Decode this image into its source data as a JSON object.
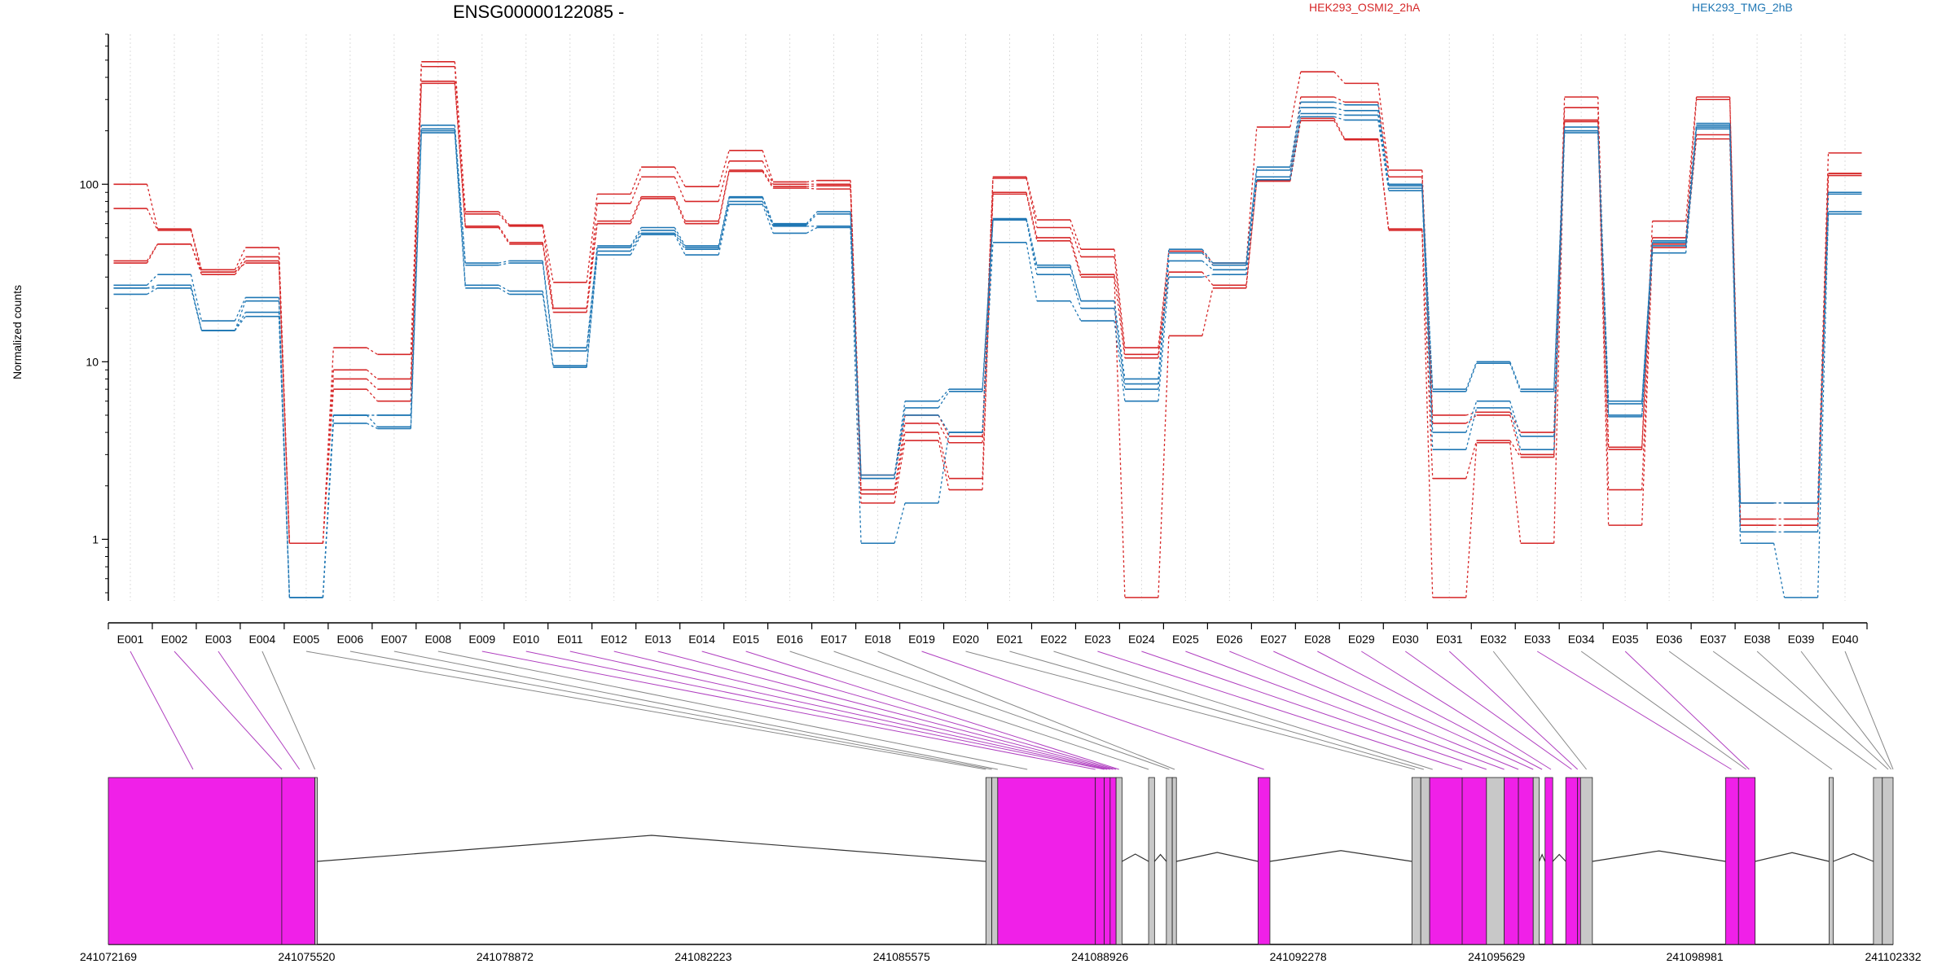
{
  "chart_data": {
    "type": "line",
    "title": "ENSG00000122085 -",
    "ylabel": "Normalized counts",
    "xlabel": "",
    "y_scale": "log",
    "ylim": [
      0.45,
      700
    ],
    "y_ticks": [
      "1",
      "10",
      "100"
    ],
    "y_tick_values": [
      1,
      10,
      100
    ],
    "grid": "vertical-dotted",
    "legend_placement": "top",
    "legend": [
      {
        "label": "HEK293_OSMI2_2hA",
        "color": "#d62728"
      },
      {
        "label": "HEK293_TMG_2hB",
        "color": "#1f77b4"
      }
    ],
    "categories": [
      "E001",
      "E002",
      "E003",
      "E004",
      "E005",
      "E006",
      "E007",
      "E008",
      "E009",
      "E010",
      "E011",
      "E012",
      "E013",
      "E014",
      "E015",
      "E016",
      "E017",
      "E018",
      "E019",
      "E020",
      "E021",
      "E022",
      "E023",
      "E024",
      "E025",
      "E026",
      "E027",
      "E028",
      "E029",
      "E030",
      "E031",
      "E032",
      "E033",
      "E034",
      "E035",
      "E036",
      "E037",
      "E038",
      "E039",
      "E040"
    ],
    "series": [
      {
        "group": "OSMI2",
        "color": "#d62728",
        "values": [
          100,
          56,
          33,
          44,
          0.95,
          12,
          11,
          490,
          70,
          59,
          28,
          88,
          125,
          97,
          155,
          103,
          105,
          2.3,
          5,
          3.8,
          110,
          63,
          43,
          12,
          42,
          36,
          210,
          430,
          370,
          120,
          5,
          5.2,
          4,
          310,
          3.3,
          62,
          310,
          1.6,
          1.6,
          150
        ]
      },
      {
        "group": "OSMI2",
        "color": "#d62728",
        "values": [
          73,
          55,
          32,
          39,
          0.95,
          9,
          8,
          460,
          68,
          58,
          20,
          78,
          110,
          80,
          135,
          100,
          100,
          1.9,
          4.5,
          3.5,
          108,
          57,
          39,
          11,
          41,
          35,
          110,
          310,
          290,
          110,
          4.5,
          5,
          3,
          270,
          3.2,
          50,
          300,
          1.3,
          1.3,
          115
        ]
      },
      {
        "group": "OSMI2",
        "color": "#d62728",
        "values": [
          37,
          46,
          31,
          37,
          0.95,
          8,
          7,
          380,
          58,
          47,
          20,
          62,
          85,
          62,
          120,
          97,
          98,
          1.8,
          4,
          2.2,
          90,
          50,
          31,
          10.5,
          32,
          27,
          105,
          235,
          180,
          56,
          2.2,
          3.6,
          2.9,
          230,
          1.9,
          46,
          190,
          1.2,
          1.2,
          115
        ]
      },
      {
        "group": "OSMI2",
        "color": "#d62728",
        "values": [
          36,
          46,
          32,
          36,
          0.95,
          7,
          6,
          370,
          57,
          46,
          19,
          60,
          83,
          60,
          118,
          95,
          94,
          1.6,
          3.6,
          1.9,
          88,
          48,
          30,
          0.47,
          14,
          26,
          104,
          228,
          178,
          55,
          0.47,
          3.5,
          0.95,
          225,
          1.2,
          44,
          180,
          1.2,
          1.2,
          112
        ]
      },
      {
        "group": "TMG",
        "color": "#1f77b4",
        "values": [
          27,
          31,
          17,
          23,
          0.47,
          5,
          5,
          215,
          36,
          37,
          12,
          45,
          57,
          45,
          85,
          60,
          70,
          2.3,
          6,
          7,
          64,
          35,
          22,
          8,
          43,
          36,
          125,
          290,
          280,
          100,
          7,
          10,
          7,
          210,
          6,
          48,
          220,
          1.6,
          1.6,
          90
        ]
      },
      {
        "group": "TMG",
        "color": "#1f77b4",
        "values": [
          26,
          27,
          15,
          22,
          0.47,
          5,
          5,
          205,
          35,
          36,
          11.5,
          44,
          55,
          44,
          84,
          59,
          68,
          2.2,
          5.5,
          6.8,
          63,
          34,
          22,
          7.5,
          41,
          35,
          120,
          270,
          260,
          98,
          6.8,
          9.8,
          6.8,
          200,
          5.8,
          47,
          215,
          1.6,
          1.6,
          88
        ]
      },
      {
        "group": "TMG",
        "color": "#1f77b4",
        "values": [
          26,
          26,
          15,
          19,
          0.47,
          5,
          4.3,
          200,
          27,
          25,
          9.5,
          42,
          53,
          43,
          80,
          58,
          58,
          2.2,
          5,
          4,
          63,
          31,
          20,
          7,
          37,
          33,
          110,
          250,
          245,
          95,
          4,
          6,
          3.8,
          200,
          5,
          45,
          210,
          1.1,
          1.1,
          70
        ]
      },
      {
        "group": "TMG",
        "color": "#1f77b4",
        "values": [
          24,
          26,
          15,
          18,
          0.47,
          4.5,
          4.2,
          195,
          26,
          24,
          9.3,
          40,
          52,
          40,
          77,
          53,
          57,
          0.95,
          1.6,
          4,
          47,
          22,
          17,
          6,
          30,
          31,
          106,
          240,
          230,
          92,
          3.2,
          5.5,
          3.2,
          195,
          4.9,
          41,
          205,
          0.95,
          0.47,
          68
        ]
      }
    ],
    "gene_model": {
      "coordinate_ticks": [
        "241072169",
        "241075520",
        "241078872",
        "241082223",
        "241085575",
        "241088926",
        "241092278",
        "241095629",
        "241098981",
        "241102332"
      ],
      "coordinate_range": [
        241072169,
        241102332
      ],
      "exon_bins": [
        {
          "start": 241072169,
          "end": 241075100,
          "color": "#f020e8"
        },
        {
          "start": 241075100,
          "end": 241075660,
          "color": "#f020e8"
        },
        {
          "start": 241075660,
          "end": 241075700,
          "color": "#c8c8c8"
        },
        {
          "start": 241087000,
          "end": 241087100,
          "color": "#c8c8c8"
        },
        {
          "start": 241087100,
          "end": 241087200,
          "color": "#c8c8c8"
        },
        {
          "start": 241087200,
          "end": 241088850,
          "color": "#f020e8"
        },
        {
          "start": 241088850,
          "end": 241089000,
          "color": "#f020e8"
        },
        {
          "start": 241089000,
          "end": 241089100,
          "color": "#f020e8"
        },
        {
          "start": 241089100,
          "end": 241089200,
          "color": "#f020e8"
        },
        {
          "start": 241089200,
          "end": 241089300,
          "color": "#c8c8c8"
        },
        {
          "start": 241089750,
          "end": 241089850,
          "color": "#c8c8c8"
        },
        {
          "start": 241090050,
          "end": 241090150,
          "color": "#c8c8c8"
        },
        {
          "start": 241090150,
          "end": 241090220,
          "color": "#c8c8c8"
        },
        {
          "start": 241091600,
          "end": 241091800,
          "color": "#f020e8"
        },
        {
          "start": 241094200,
          "end": 241094350,
          "color": "#c8c8c8"
        },
        {
          "start": 241094350,
          "end": 241094500,
          "color": "#c8c8c8"
        },
        {
          "start": 241094500,
          "end": 241095050,
          "color": "#f020e8"
        },
        {
          "start": 241095050,
          "end": 241095460,
          "color": "#f020e8"
        },
        {
          "start": 241095460,
          "end": 241095760,
          "color": "#c8c8c8"
        },
        {
          "start": 241095760,
          "end": 241096000,
          "color": "#f020e8"
        },
        {
          "start": 241096000,
          "end": 241096250,
          "color": "#f020e8"
        },
        {
          "start": 241096250,
          "end": 241096350,
          "color": "#c8c8c8"
        },
        {
          "start": 241096450,
          "end": 241096580,
          "color": "#f020e8"
        },
        {
          "start": 241096800,
          "end": 241097000,
          "color": "#f020e8"
        },
        {
          "start": 241097000,
          "end": 241097050,
          "color": "#f020e8"
        },
        {
          "start": 241097050,
          "end": 241097250,
          "color": "#c8c8c8"
        },
        {
          "start": 241099500,
          "end": 241099720,
          "color": "#f020e8"
        },
        {
          "start": 241099720,
          "end": 241100000,
          "color": "#f020e8"
        },
        {
          "start": 241101250,
          "end": 241101320,
          "color": "#c8c8c8"
        },
        {
          "start": 241102000,
          "end": 241102150,
          "color": "#c8c8c8"
        },
        {
          "start": 241102150,
          "end": 241102332,
          "color": "#c8c8c8"
        }
      ],
      "exon_connector_targets": [
        241073600,
        241075100,
        241075400,
        241075660,
        241087000,
        241087100,
        241087200,
        241087700,
        241088850,
        241089000,
        241089050,
        241089100,
        241089150,
        241089200,
        241089250,
        241089750,
        241090100,
        241090190,
        241091700,
        241094250,
        241094400,
        241094550,
        241095050,
        241095460,
        241095760,
        241096000,
        241096250,
        241096400,
        241096550,
        241096900,
        241097000,
        241097150,
        241099600,
        241099850,
        241099900,
        241101300,
        241102050,
        241102250,
        241102300,
        241102332
      ],
      "exon_connector_colors": [
        "#b040c0",
        "#b040c0",
        "#b040c0",
        "#888888",
        "#888888",
        "#888888",
        "#888888",
        "#888888",
        "#b040c0",
        "#b040c0",
        "#b040c0",
        "#b040c0",
        "#b040c0",
        "#b040c0",
        "#b040c0",
        "#888888",
        "#888888",
        "#888888",
        "#b040c0",
        "#888888",
        "#888888",
        "#888888",
        "#b040c0",
        "#b040c0",
        "#b040c0",
        "#b040c0",
        "#b040c0",
        "#b040c0",
        "#b040c0",
        "#b040c0",
        "#b040c0",
        "#888888",
        "#b040c0",
        "#888888",
        "#b040c0",
        "#888888",
        "#888888",
        "#888888",
        "#888888",
        "#888888"
      ]
    }
  }
}
